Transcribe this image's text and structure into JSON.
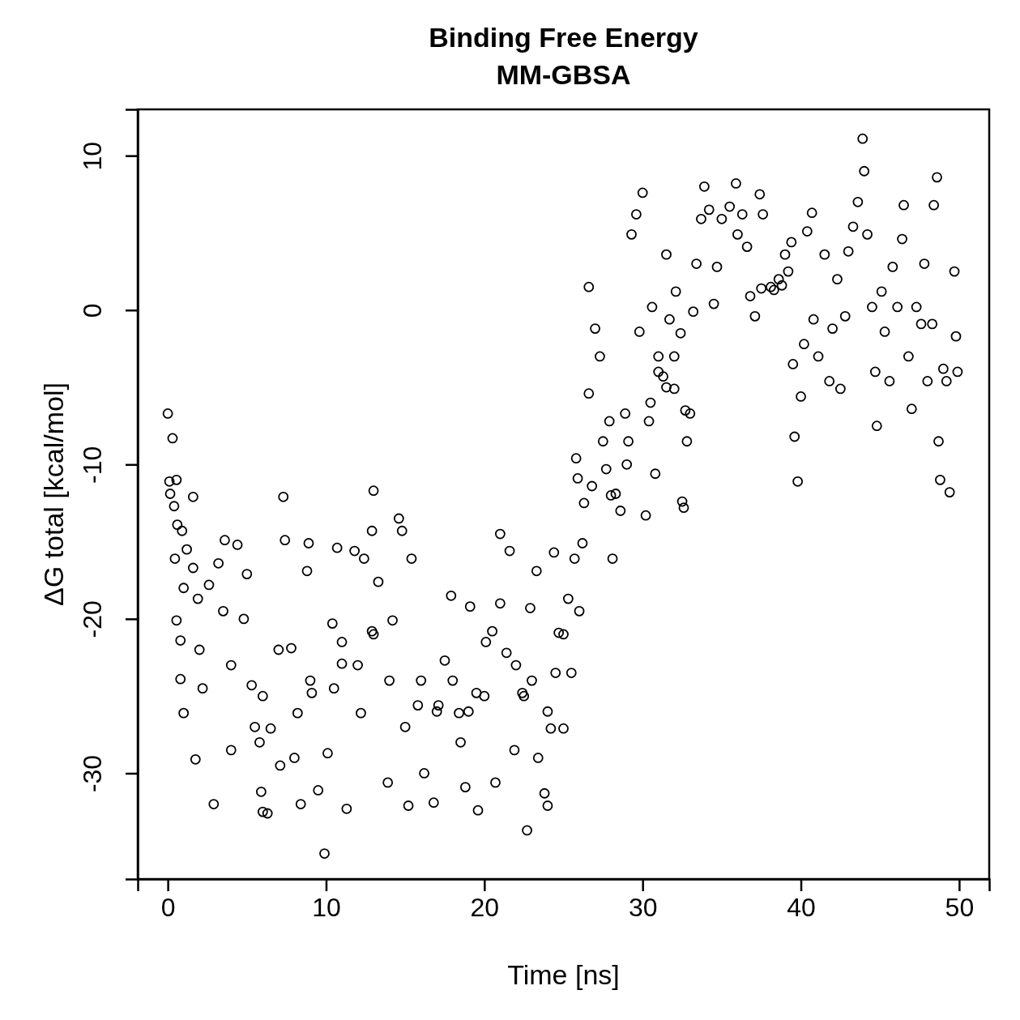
{
  "chart_data": {
    "type": "scatter",
    "title": "Binding Free Energy\nMM-GBSA",
    "xlabel": "Time [ns]",
    "ylabel": "ΔG total [kcal/mol]",
    "xlim": [
      -1.9,
      51.9
    ],
    "ylim": [
      -36.85,
      13.0
    ],
    "xticks": [
      0,
      10,
      20,
      30,
      40,
      50
    ],
    "yticks": [
      10,
      0,
      -10,
      -20,
      -30
    ],
    "grid": false,
    "marker": "circle",
    "series": [
      {
        "color": "#000000",
        "x": [
          0,
          0.1,
          0.15,
          0.3,
          0.4,
          0.55,
          0.45,
          0.6,
          0.9,
          0.55,
          0.8,
          0.8,
          1.0,
          1.2,
          1.6,
          1.75,
          1.6,
          1.9,
          2.2,
          2.6,
          2.9,
          3.2,
          3.6,
          4.0,
          4.4,
          4.8,
          5.0,
          5.3,
          5.8,
          5.9,
          6.0,
          6.3,
          6.5,
          7.1,
          7.3,
          7.4,
          7.8,
          8.2,
          8.8,
          8.9,
          8.4,
          9.1,
          9.5,
          9.9,
          10.1,
          10.4,
          10.7,
          11.0,
          11.3,
          11.8,
          12.2,
          12.4,
          12.9,
          13.0,
          12.9,
          13.3,
          13.9,
          14.2,
          14.6,
          14.8,
          15.2,
          15.4,
          15.8,
          16.2,
          16.8,
          17.1,
          17.5,
          17.9,
          18.4,
          18.8,
          19.1,
          19.5,
          19.6,
          20.1,
          20.7,
          21.0,
          21.4,
          21.6,
          21.9,
          22.4,
          22.7,
          22.9,
          23.3,
          23.4,
          23.8,
          24.0,
          24.2,
          24.4,
          24.7,
          25.0,
          25.3,
          25.5,
          25.7,
          25.8,
          25.9,
          26.0,
          26.2,
          26.3,
          26.6,
          26.6,
          26.8,
          27.0,
          27.3,
          27.5,
          27.7,
          27.9,
          28.1,
          28.3,
          28.6,
          28.9,
          29.1,
          29.3,
          29.6,
          29.8,
          30.0,
          30.2,
          30.4,
          30.6,
          30.8,
          31.0,
          31.3,
          31.5,
          31.7,
          32.0,
          32.1,
          32.4,
          32.5,
          32.6,
          32.8,
          33.0,
          33.2,
          33.4,
          33.7,
          33.9,
          34.2,
          34.5,
          34.7,
          35.0,
          35.5,
          35.9,
          36.0,
          36.3,
          36.6,
          36.8,
          37.1,
          37.4,
          37.6,
          38.1,
          38.6,
          39.0,
          39.4,
          39.5,
          39.6,
          39.8,
          40.0,
          40.2,
          40.4,
          40.7,
          40.8,
          41.1,
          41.5,
          41.8,
          42.0,
          42.3,
          42.5,
          42.8,
          43.0,
          43.3,
          43.6,
          43.9,
          44.0,
          44.2,
          44.5,
          44.7,
          44.8,
          45.1,
          45.3,
          45.6,
          45.8,
          46.1,
          46.4,
          46.5,
          46.8,
          47.0,
          47.3,
          47.6,
          47.8,
          48.0,
          48.3,
          48.4,
          48.6,
          48.7,
          48.8,
          49.0,
          49.2,
          49.4,
          49.7,
          49.8,
          49.9,
          2,
          3.5,
          6,
          7,
          9,
          11,
          13,
          14,
          16,
          17,
          18,
          19,
          20,
          21,
          22,
          23,
          24,
          25,
          1,
          4,
          5.5,
          8,
          10.5,
          12,
          15,
          18.5,
          20.5,
          22.5,
          24.5,
          31,
          32,
          30.5,
          29,
          28,
          31.5,
          32.7,
          37.5,
          38.3,
          38.8,
          39.2
        ],
        "values": [
          -6.7,
          -11.1,
          -11.9,
          -8.3,
          -12.7,
          -11.0,
          -16.1,
          -13.9,
          -14.3,
          -20.1,
          -21.4,
          -23.9,
          -26.1,
          -15.5,
          -12.1,
          -29.1,
          -16.7,
          -18.7,
          -24.5,
          -17.8,
          -32.0,
          -16.4,
          -14.9,
          -28.5,
          -15.2,
          -20.0,
          -17.1,
          -24.3,
          -28.0,
          -31.2,
          -32.5,
          -32.6,
          -27.1,
          -29.5,
          -12.1,
          -14.9,
          -21.9,
          -26.1,
          -16.9,
          -15.1,
          -32.0,
          -24.8,
          -31.1,
          -35.2,
          -28.7,
          -20.3,
          -15.4,
          -22.9,
          -32.3,
          -15.6,
          -26.1,
          -16.1,
          -20.8,
          -11.7,
          -14.3,
          -17.6,
          -30.6,
          -20.1,
          -13.5,
          -14.3,
          -32.1,
          -16.1,
          -25.6,
          -30.0,
          -31.9,
          -25.6,
          -22.7,
          -18.5,
          -26.1,
          -30.9,
          -19.2,
          -24.8,
          -32.4,
          -21.5,
          -30.6,
          -14.5,
          -22.2,
          -15.6,
          -28.5,
          -24.8,
          -33.7,
          -19.3,
          -16.9,
          -29.0,
          -31.3,
          -32.1,
          -27.1,
          -15.7,
          -20.9,
          -27.1,
          -18.7,
          -23.5,
          -16.1,
          -9.6,
          -10.9,
          -19.5,
          -15.1,
          -12.5,
          1.5,
          -5.4,
          -11.4,
          -1.2,
          -3.0,
          -8.5,
          -10.3,
          -7.2,
          -16.1,
          -11.9,
          -13.0,
          -6.7,
          -8.5,
          4.9,
          6.2,
          -1.4,
          7.6,
          -13.3,
          -7.2,
          0.2,
          -10.6,
          -3.0,
          -4.3,
          3.6,
          -0.6,
          -5.1,
          1.2,
          -1.5,
          -12.4,
          -12.8,
          -8.5,
          -6.7,
          -0.1,
          3.0,
          5.9,
          8.0,
          6.5,
          0.4,
          2.8,
          5.9,
          6.7,
          8.2,
          4.9,
          6.2,
          4.1,
          0.9,
          -0.4,
          7.5,
          6.2,
          1.5,
          2.0,
          3.6,
          4.4,
          -3.5,
          -8.2,
          -11.1,
          -5.6,
          -2.2,
          5.1,
          6.3,
          -0.6,
          -3.0,
          3.6,
          -4.6,
          -1.2,
          2.0,
          -5.1,
          -0.4,
          3.8,
          5.4,
          7.0,
          11.1,
          9.0,
          4.9,
          0.2,
          -4.0,
          -7.5,
          1.2,
          -1.4,
          -4.6,
          2.8,
          0.2,
          4.6,
          6.8,
          -3.0,
          -6.4,
          0.2,
          -0.9,
          3.0,
          -4.6,
          -0.9,
          6.8,
          8.6,
          -8.5,
          -11.0,
          -3.8,
          -4.6,
          -11.8,
          2.5,
          -1.7,
          -4.0,
          -22,
          -19.5,
          -25,
          -22,
          -24,
          -21.5,
          -21,
          -24,
          -24,
          -26,
          -24,
          -26,
          -25,
          -19,
          -23,
          -24,
          -26,
          -21,
          -18,
          -23,
          -27,
          -29,
          -24.5,
          -23,
          -27,
          -28,
          -20.8,
          -25,
          -23.5,
          -4,
          -3,
          -6,
          -10,
          -12,
          -5,
          -6.5,
          1.4,
          1.3,
          1.6,
          2.5
        ]
      }
    ]
  }
}
